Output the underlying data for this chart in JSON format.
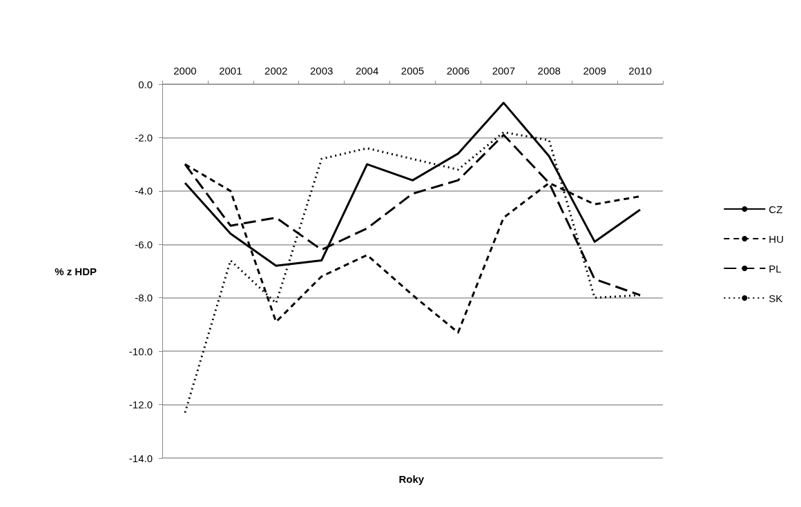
{
  "chart_data": {
    "type": "line",
    "xlabel": "Roky",
    "ylabel": "% z HDP",
    "categories": [
      "2000",
      "2001",
      "2002",
      "2003",
      "2004",
      "2005",
      "2006",
      "2007",
      "2008",
      "2009",
      "2010"
    ],
    "series": [
      {
        "name": "CZ",
        "color": "#000000",
        "line_style": "solid",
        "values": [
          -3.7,
          -5.6,
          -6.8,
          -6.6,
          -3.0,
          -3.6,
          -2.6,
          -0.7,
          -2.7,
          -5.9,
          -4.7
        ]
      },
      {
        "name": "HU",
        "color": "#000000",
        "line_style": "dashed",
        "values": [
          -3.0,
          -4.0,
          -8.9,
          -7.2,
          -6.4,
          -7.9,
          -9.3,
          -5.0,
          -3.7,
          -4.5,
          -4.2
        ]
      },
      {
        "name": "PL",
        "color": "#000000",
        "line_style": "longdash",
        "values": [
          -3.0,
          -5.3,
          -5.0,
          -6.2,
          -5.4,
          -4.1,
          -3.6,
          -1.9,
          -3.7,
          -7.3,
          -7.9
        ]
      },
      {
        "name": "SK",
        "color": "#000000",
        "line_style": "dotted",
        "values": [
          -12.3,
          -6.6,
          -8.2,
          -2.8,
          -2.4,
          -2.8,
          -3.2,
          -1.8,
          -2.1,
          -8.0,
          -7.9
        ]
      }
    ],
    "ylim": [
      -14,
      0
    ],
    "yticks": [
      {
        "value": -14,
        "label": "-14.0"
      },
      {
        "value": -12,
        "label": "-12.0"
      },
      {
        "value": -10,
        "label": "-10.0"
      },
      {
        "value": -8,
        "label": "-8.0"
      },
      {
        "value": -6,
        "label": "-6.0"
      },
      {
        "value": -4,
        "label": "-4.0"
      },
      {
        "value": -2,
        "label": "-2.0"
      },
      {
        "value": 0,
        "label": "0.0"
      }
    ],
    "grid": "y",
    "legend": "right",
    "marker": "none"
  }
}
